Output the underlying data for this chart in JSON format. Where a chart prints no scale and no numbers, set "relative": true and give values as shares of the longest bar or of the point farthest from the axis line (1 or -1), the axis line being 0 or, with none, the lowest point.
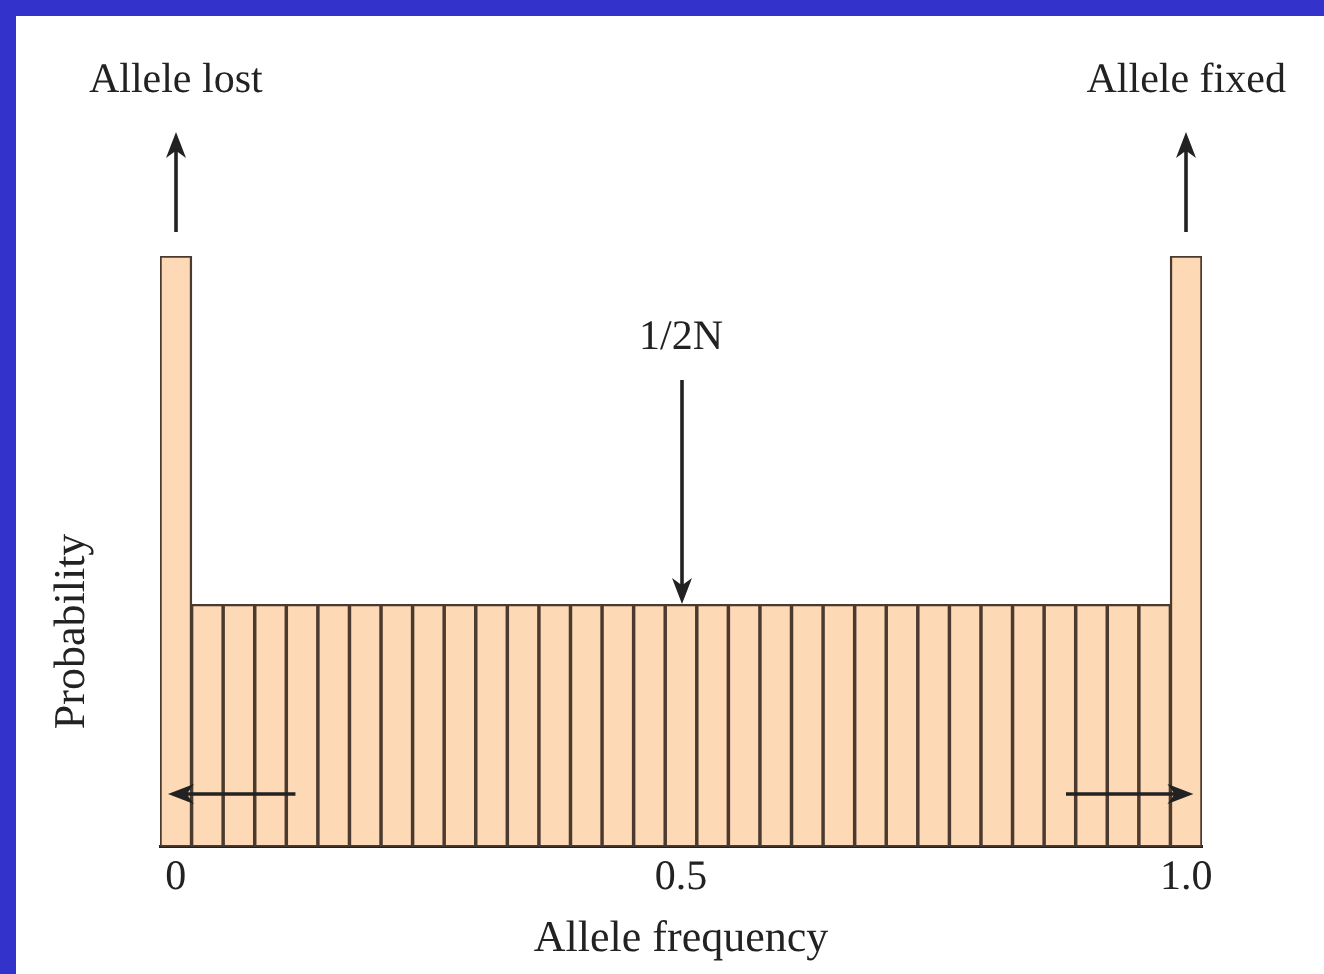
{
  "chart_data": {
    "type": "bar",
    "xlabel": "Allele frequency",
    "ylabel": "Probability",
    "relative": true,
    "categories": [
      "0",
      null,
      null,
      null,
      null,
      null,
      null,
      null,
      null,
      null,
      null,
      null,
      null,
      null,
      null,
      null,
      "0.5",
      null,
      null,
      null,
      null,
      null,
      null,
      null,
      null,
      null,
      null,
      null,
      null,
      null,
      null,
      null,
      "1.0"
    ],
    "values": [
      1,
      0.41,
      0.41,
      0.41,
      0.41,
      0.41,
      0.41,
      0.41,
      0.41,
      0.41,
      0.41,
      0.41,
      0.41,
      0.41,
      0.41,
      0.41,
      0.41,
      0.41,
      0.41,
      0.41,
      0.41,
      0.41,
      0.41,
      0.41,
      0.41,
      0.41,
      0.41,
      0.41,
      0.41,
      0.41,
      0.41,
      0.41,
      1
    ],
    "color": "#fdd9b5",
    "grid": false,
    "legend": false,
    "annotations": [
      "Allele lost",
      "Allele fixed",
      "1/2N"
    ]
  }
}
